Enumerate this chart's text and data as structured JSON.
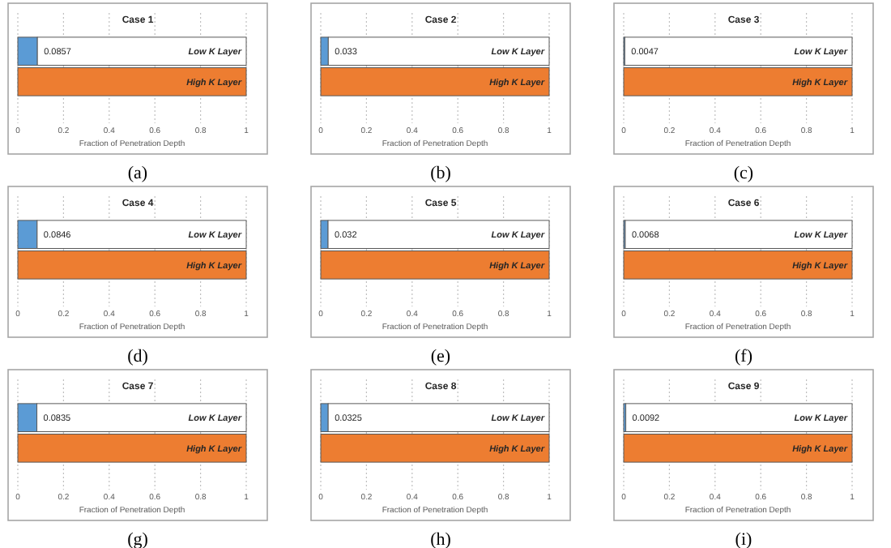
{
  "chart_data": [
    {
      "type": "bar",
      "orientation": "horizontal",
      "stacked": true,
      "title": "Case 1",
      "xlabel": "Fraction of Penetration Depth",
      "categories": [
        "Low K Layer",
        "High K Layer"
      ],
      "series": [
        {
          "colors": [
            "#5b9bd5",
            "#ed7d31"
          ],
          "values": [
            0.0857,
            1
          ],
          "value_labels": [
            "0.0857",
            null
          ]
        },
        {
          "color": "#ffffff",
          "values": [
            0.9143,
            null
          ]
        }
      ],
      "xlim": [
        0,
        1
      ],
      "xticks": [
        0,
        0.2,
        0.4,
        0.6,
        0.8,
        1
      ],
      "grid": "x",
      "annotations": [
        "(a)"
      ]
    },
    {
      "type": "bar",
      "orientation": "horizontal",
      "stacked": true,
      "title": "Case 2",
      "xlabel": "Fraction of Penetration Depth",
      "categories": [
        "Low K Layer",
        "High K Layer"
      ],
      "series": [
        {
          "colors": [
            "#5b9bd5",
            "#ed7d31"
          ],
          "values": [
            0.033,
            1
          ],
          "value_labels": [
            "0.033",
            null
          ]
        },
        {
          "color": "#ffffff",
          "values": [
            0.967,
            null
          ]
        }
      ],
      "xlim": [
        0,
        1
      ],
      "xticks": [
        0,
        0.2,
        0.4,
        0.6,
        0.8,
        1
      ],
      "grid": "x",
      "annotations": [
        "(b)"
      ]
    },
    {
      "type": "bar",
      "orientation": "horizontal",
      "stacked": true,
      "title": "Case 3",
      "xlabel": "Fraction of Penetration Depth",
      "categories": [
        "Low K Layer",
        "High K Layer"
      ],
      "series": [
        {
          "colors": [
            "#5b9bd5",
            "#ed7d31"
          ],
          "values": [
            0.0047,
            1
          ],
          "value_labels": [
            "0.0047",
            null
          ]
        },
        {
          "color": "#ffffff",
          "values": [
            0.9953,
            null
          ]
        }
      ],
      "xlim": [
        0,
        1
      ],
      "xticks": [
        0,
        0.2,
        0.4,
        0.6,
        0.8,
        1
      ],
      "grid": "x",
      "annotations": [
        "(c)"
      ]
    },
    {
      "type": "bar",
      "orientation": "horizontal",
      "stacked": true,
      "title": "Case 4",
      "xlabel": "Fraction of Penetration Depth",
      "categories": [
        "Low K Layer",
        "High K Layer"
      ],
      "series": [
        {
          "colors": [
            "#5b9bd5",
            "#ed7d31"
          ],
          "values": [
            0.0846,
            1
          ],
          "value_labels": [
            "0.0846",
            null
          ]
        },
        {
          "color": "#ffffff",
          "values": [
            0.9154,
            null
          ]
        }
      ],
      "xlim": [
        0,
        1
      ],
      "xticks": [
        0,
        0.2,
        0.4,
        0.6,
        0.8,
        1
      ],
      "grid": "x",
      "annotations": [
        "(d)"
      ]
    },
    {
      "type": "bar",
      "orientation": "horizontal",
      "stacked": true,
      "title": "Case 5",
      "xlabel": "Fraction of Penetration Depth",
      "categories": [
        "Low K Layer",
        "High K Layer"
      ],
      "series": [
        {
          "colors": [
            "#5b9bd5",
            "#ed7d31"
          ],
          "values": [
            0.032,
            1
          ],
          "value_labels": [
            "0.032",
            null
          ]
        },
        {
          "color": "#ffffff",
          "values": [
            0.968,
            null
          ]
        }
      ],
      "xlim": [
        0,
        1
      ],
      "xticks": [
        0,
        0.2,
        0.4,
        0.6,
        0.8,
        1
      ],
      "grid": "x",
      "annotations": [
        "(e)"
      ]
    },
    {
      "type": "bar",
      "orientation": "horizontal",
      "stacked": true,
      "title": "Case 6",
      "xlabel": "Fraction of Penetration Depth",
      "categories": [
        "Low K Layer",
        "High K Layer"
      ],
      "series": [
        {
          "colors": [
            "#5b9bd5",
            "#ed7d31"
          ],
          "values": [
            0.0068,
            1
          ],
          "value_labels": [
            "0.0068",
            null
          ]
        },
        {
          "color": "#ffffff",
          "values": [
            0.9932,
            null
          ]
        }
      ],
      "xlim": [
        0,
        1
      ],
      "xticks": [
        0,
        0.2,
        0.4,
        0.6,
        0.8,
        1
      ],
      "grid": "x",
      "annotations": [
        "(f)"
      ]
    },
    {
      "type": "bar",
      "orientation": "horizontal",
      "stacked": true,
      "title": "Case 7",
      "xlabel": "Fraction of Penetration Depth",
      "categories": [
        "Low K Layer",
        "High K Layer"
      ],
      "series": [
        {
          "colors": [
            "#5b9bd5",
            "#ed7d31"
          ],
          "values": [
            0.0835,
            1
          ],
          "value_labels": [
            "0.0835",
            null
          ]
        },
        {
          "color": "#ffffff",
          "values": [
            0.9165,
            null
          ]
        }
      ],
      "xlim": [
        0,
        1
      ],
      "xticks": [
        0,
        0.2,
        0.4,
        0.6,
        0.8,
        1
      ],
      "grid": "x",
      "annotations": [
        "(g)"
      ]
    },
    {
      "type": "bar",
      "orientation": "horizontal",
      "stacked": true,
      "title": "Case 8",
      "xlabel": "Fraction of Penetration Depth",
      "categories": [
        "Low K Layer",
        "High K Layer"
      ],
      "series": [
        {
          "colors": [
            "#5b9bd5",
            "#ed7d31"
          ],
          "values": [
            0.0325,
            1
          ],
          "value_labels": [
            "0.0325",
            null
          ]
        },
        {
          "color": "#ffffff",
          "values": [
            0.9675,
            null
          ]
        }
      ],
      "xlim": [
        0,
        1
      ],
      "xticks": [
        0,
        0.2,
        0.4,
        0.6,
        0.8,
        1
      ],
      "grid": "x",
      "annotations": [
        "(h)"
      ]
    },
    {
      "type": "bar",
      "orientation": "horizontal",
      "stacked": true,
      "title": "Case 9",
      "xlabel": "Fraction of Penetration Depth",
      "categories": [
        "Low K Layer",
        "High K Layer"
      ],
      "series": [
        {
          "colors": [
            "#5b9bd5",
            "#ed7d31"
          ],
          "values": [
            0.0092,
            1
          ],
          "value_labels": [
            "0.0092",
            null
          ]
        },
        {
          "color": "#ffffff",
          "values": [
            0.9908,
            null
          ]
        }
      ],
      "xlim": [
        0,
        1
      ],
      "xticks": [
        0,
        0.2,
        0.4,
        0.6,
        0.8,
        1
      ],
      "grid": "x",
      "annotations": [
        "(i)"
      ]
    }
  ]
}
